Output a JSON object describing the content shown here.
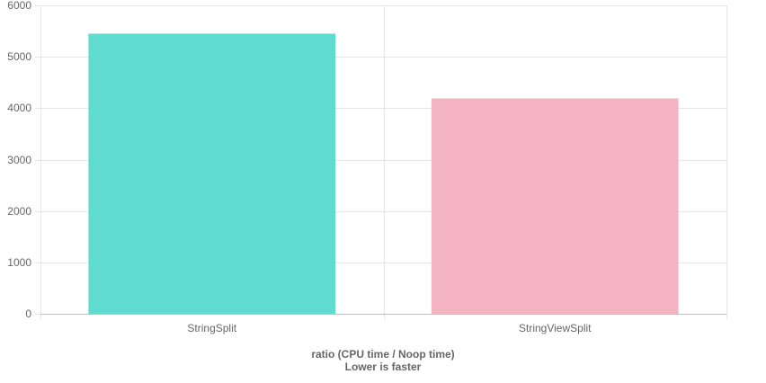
{
  "chart_data": {
    "type": "bar",
    "categories": [
      "StringSplit",
      "StringViewSplit"
    ],
    "values": [
      5450,
      4190
    ],
    "colors": [
      "#5fdbcf",
      "#f5b4c2"
    ],
    "ylim": [
      0,
      6000
    ],
    "yticks": [
      0,
      1000,
      2000,
      3000,
      4000,
      5000,
      6000
    ],
    "xlabel_line1": "ratio (CPU time / Noop time)",
    "xlabel_line2": "Lower is faster",
    "grid": true,
    "legend": "none"
  }
}
